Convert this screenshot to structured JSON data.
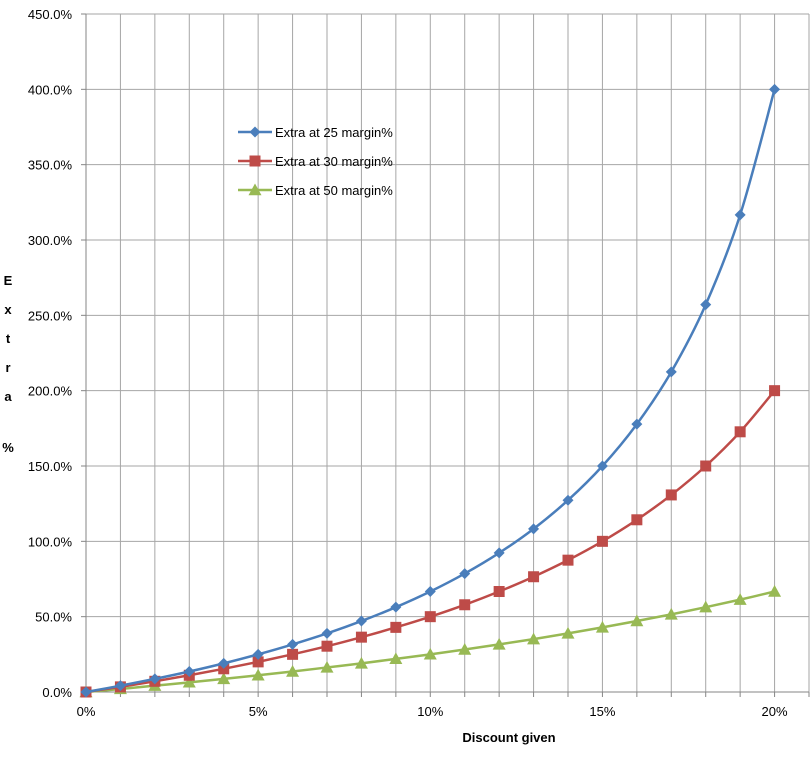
{
  "chart_data": {
    "type": "line",
    "x": [
      0,
      1,
      2,
      3,
      4,
      5,
      6,
      7,
      8,
      9,
      10,
      11,
      12,
      13,
      14,
      15,
      16,
      17,
      18,
      19,
      20
    ],
    "x_tick_labels": [
      "0%",
      "5%",
      "10%",
      "15%",
      "20%"
    ],
    "x_tick_values": [
      0,
      5,
      10,
      15,
      20
    ],
    "xlim": [
      0,
      21
    ],
    "y_tick_labels": [
      "0.0%",
      "50.0%",
      "100.0%",
      "150.0%",
      "200.0%",
      "250.0%",
      "300.0%",
      "350.0%",
      "400.0%",
      "450.0%"
    ],
    "y_tick_values": [
      0,
      50,
      100,
      150,
      200,
      250,
      300,
      350,
      400,
      450
    ],
    "ylim": [
      0,
      450
    ],
    "xlabel": "Discount given",
    "ylabel": "Extra %",
    "grid": true,
    "legend_position": "upper-left",
    "series": [
      {
        "name": "Extra at 25 margin%",
        "color": "#4a7ebb",
        "marker": "diamond",
        "values": [
          0,
          4.2,
          8.7,
          13.6,
          19.0,
          25.0,
          31.6,
          38.9,
          47.1,
          56.3,
          66.7,
          78.6,
          92.3,
          108.3,
          127.3,
          150.0,
          177.8,
          212.5,
          257.1,
          316.7,
          400.0
        ]
      },
      {
        "name": "Extra at 30 margin%",
        "color": "#be4b48",
        "marker": "square",
        "values": [
          0,
          3.4,
          7.1,
          11.1,
          15.4,
          20.0,
          25.0,
          30.4,
          36.4,
          42.9,
          50.0,
          57.9,
          66.7,
          76.5,
          87.5,
          100.0,
          114.3,
          130.8,
          150.0,
          172.7,
          200.0
        ]
      },
      {
        "name": "Extra at 50 margin%",
        "color": "#98b954",
        "marker": "triangle",
        "values": [
          0,
          2.0,
          4.2,
          6.4,
          8.7,
          11.1,
          13.6,
          16.3,
          19.0,
          22.0,
          25.0,
          28.2,
          31.6,
          35.1,
          38.9,
          42.9,
          47.1,
          51.5,
          56.3,
          61.3,
          66.7
        ]
      }
    ]
  }
}
